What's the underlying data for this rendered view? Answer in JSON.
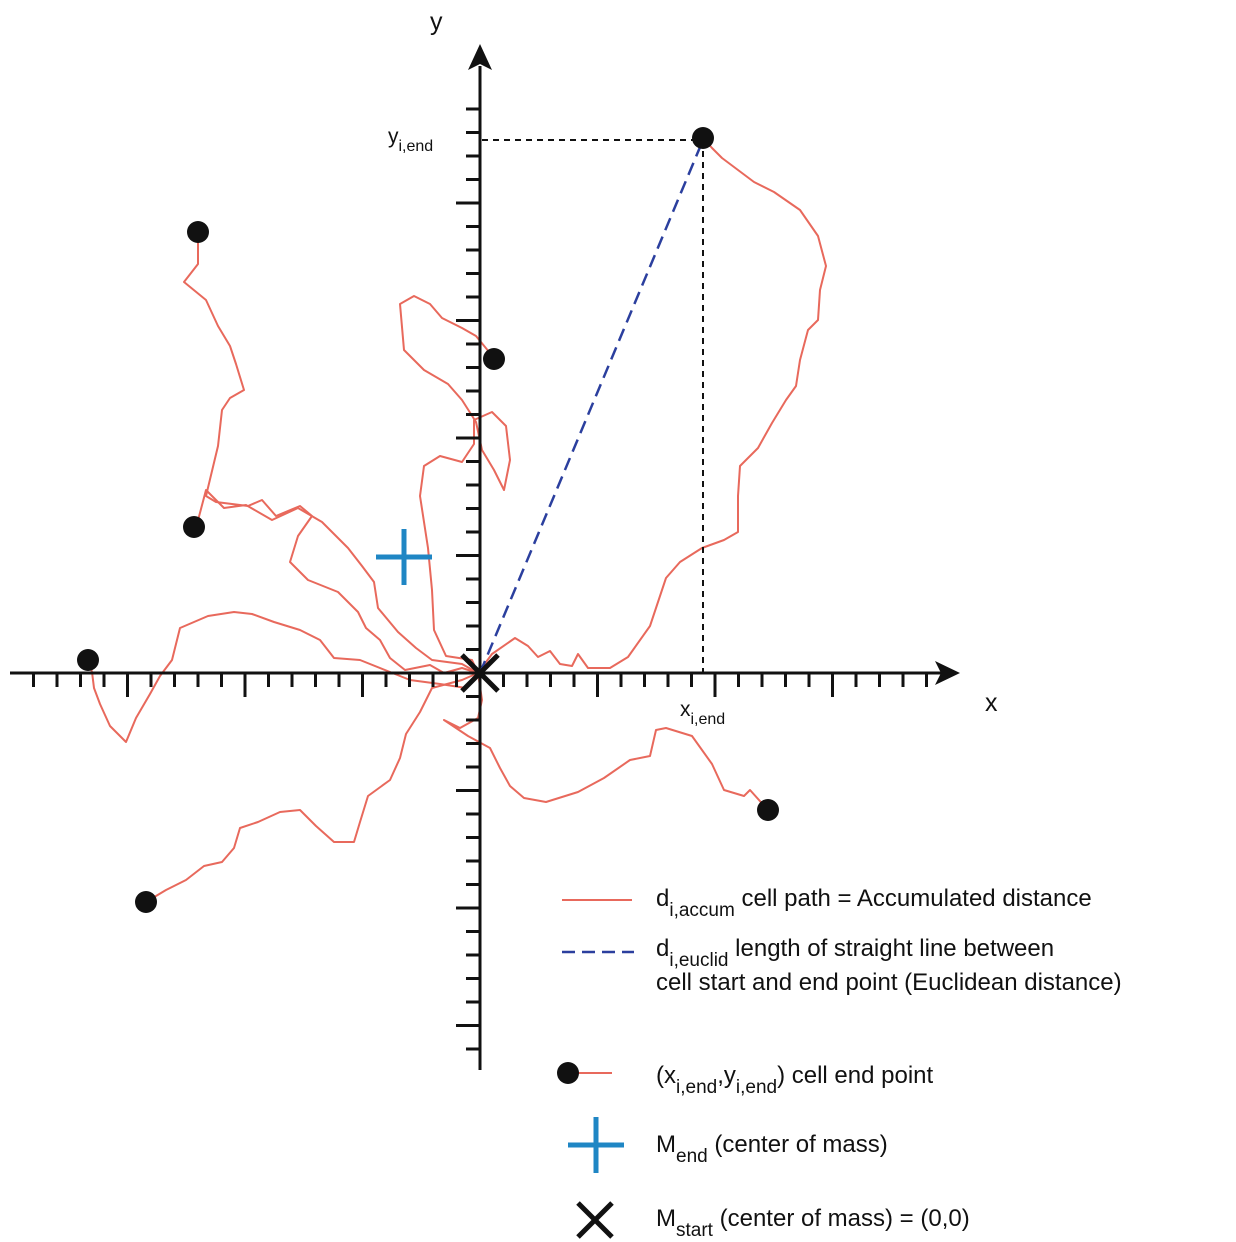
{
  "axes": {
    "x_label": "x",
    "y_label": "y",
    "x_end_label": {
      "main": "x",
      "sub": "i,end"
    },
    "y_end_label": {
      "main": "y",
      "sub": "i,end"
    }
  },
  "colors": {
    "path": "#e8695c",
    "euclid": "#2b3f9e",
    "center_end": "#1f86c4",
    "marker": "#111111"
  },
  "legend": {
    "path": {
      "sym": "d",
      "sub": "i,accum",
      "text": " cell path = Accumulated distance"
    },
    "euclid": {
      "sym": "d",
      "sub": "i,euclid",
      "text": " length of straight line between",
      "line2": "cell start and end point (Euclidean distance)"
    },
    "end_point": {
      "open": "(x",
      "sub1": "i,end",
      "mid": ",y",
      "sub2": "i,end",
      "text": ") cell end point"
    },
    "m_end": {
      "sym": "M",
      "sub": "end",
      "text": " (center of mass)"
    },
    "m_start": {
      "sym": "M",
      "sub": "start",
      "text": " (center of mass) = (0,0)"
    }
  },
  "icons": {
    "end_point": "filled-circle-icon",
    "m_end": "plus-icon",
    "m_start": "x-cross-icon"
  }
}
